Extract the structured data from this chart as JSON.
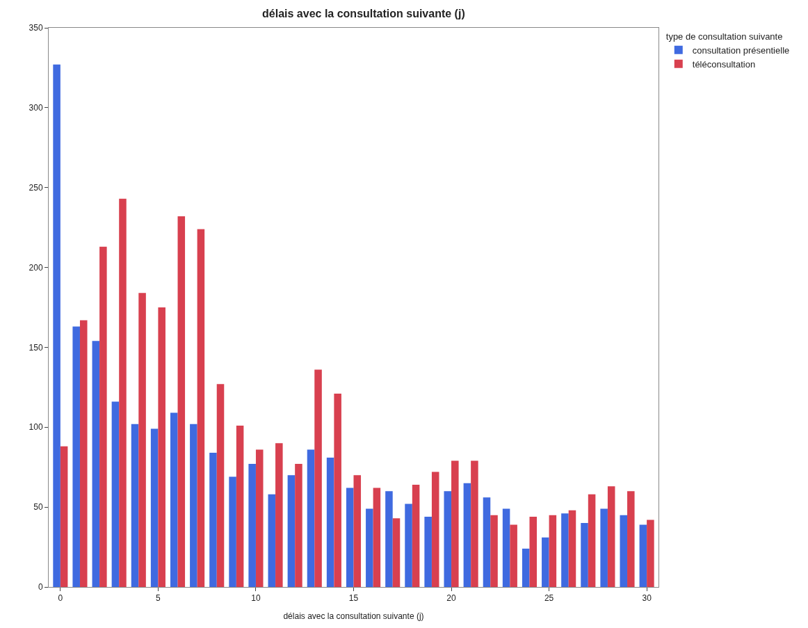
{
  "chart_data": {
    "type": "bar",
    "title": "délais avec la consultation suivante (j)",
    "xlabel": "délais avec la consultation suivante (j)",
    "legend_title": "type de consultation suivante",
    "x": [
      0,
      1,
      2,
      3,
      4,
      5,
      6,
      7,
      8,
      9,
      10,
      11,
      12,
      13,
      14,
      15,
      16,
      17,
      18,
      19,
      20,
      21,
      22,
      23,
      24,
      25,
      26,
      27,
      28,
      29,
      30
    ],
    "series": [
      {
        "name": "consultation présentielle",
        "color": "#3f6ae0",
        "values": [
          327,
          163,
          154,
          116,
          102,
          99,
          109,
          102,
          84,
          69,
          77,
          58,
          70,
          86,
          81,
          62,
          49,
          60,
          52,
          44,
          60,
          65,
          56,
          49,
          24,
          31,
          46,
          40,
          49,
          45,
          39
        ]
      },
      {
        "name": "téléconsultation",
        "color": "#d8404f",
        "values": [
          88,
          167,
          213,
          243,
          184,
          175,
          232,
          224,
          127,
          101,
          86,
          90,
          77,
          136,
          121,
          70,
          62,
          43,
          64,
          72,
          79,
          79,
          45,
          39,
          44,
          45,
          48,
          58,
          63,
          60,
          42
        ]
      }
    ],
    "xlim": [
      -0.6,
      30.6
    ],
    "xticks": [
      0,
      5,
      10,
      15,
      20,
      25,
      30
    ],
    "ylim": [
      0,
      350
    ],
    "yticks": [
      0,
      50,
      100,
      150,
      200,
      250,
      300,
      350
    ],
    "legend": "top right"
  }
}
